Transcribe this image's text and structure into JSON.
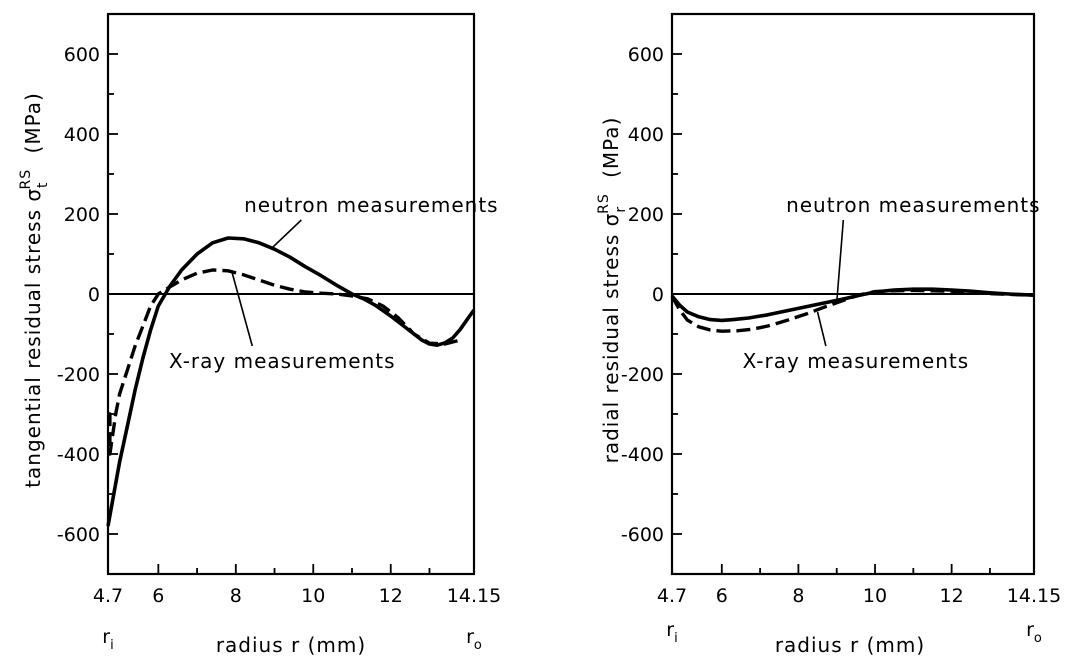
{
  "chart_data": [
    {
      "type": "line",
      "ylabel": "tangential residual stress σ_t^RS (MPa)",
      "ylabel_main": "tangential residual stress σ",
      "ylabel_sub": "t",
      "ylabel_sup": "RS",
      "ylabel_unit": "(MPa)",
      "xlabel": "radius r (mm)",
      "inner_label": "r",
      "inner_sub": "i",
      "outer_label": "r",
      "outer_sub": "o",
      "xlim": [
        4.7,
        14.15
      ],
      "ylim": [
        -700,
        700
      ],
      "xticks": [
        4.7,
        6,
        8,
        10,
        12,
        14.15
      ],
      "xtick_labels": [
        "4.7",
        "6",
        "8",
        "10",
        "12",
        "14.15"
      ],
      "yticks": [
        600,
        400,
        200,
        0,
        -200,
        -400,
        -600
      ],
      "ytick_labels": [
        "600",
        "400",
        "200",
        "0",
        "-200",
        "-400",
        "-600"
      ],
      "zero_line": true,
      "series": [
        {
          "name": "neutron measurements",
          "style": "solid",
          "x": [
            4.7,
            4.85,
            5.0,
            5.2,
            5.4,
            5.6,
            5.8,
            6.0,
            6.3,
            6.6,
            7.0,
            7.4,
            7.8,
            8.2,
            8.6,
            9.0,
            9.4,
            9.8,
            10.2,
            10.6,
            11.0,
            11.3,
            11.6,
            12.0,
            12.4,
            12.8,
            13.0,
            13.2,
            13.4,
            13.6,
            13.8,
            14.0,
            14.15
          ],
          "y": [
            -580,
            -500,
            -420,
            -330,
            -240,
            -160,
            -90,
            -30,
            20,
            60,
            100,
            128,
            140,
            138,
            128,
            112,
            92,
            68,
            46,
            22,
            0,
            -12,
            -28,
            -55,
            -85,
            -115,
            -125,
            -128,
            -122,
            -110,
            -88,
            -60,
            -40
          ]
        },
        {
          "name": "X-ray measurements",
          "style": "dashed",
          "x": [
            4.7,
            4.75,
            4.75,
            4.9,
            5.0,
            5.2,
            5.4,
            5.6,
            5.8,
            6.0,
            6.3,
            6.6,
            7.0,
            7.4,
            7.8,
            8.2,
            8.6,
            9.0,
            9.4,
            9.8,
            10.2,
            10.6,
            11.0,
            11.4,
            11.8,
            12.2,
            12.6,
            13.0,
            13.4,
            13.8
          ],
          "y": [
            -300,
            -300,
            -400,
            -300,
            -250,
            -190,
            -130,
            -80,
            -30,
            0,
            18,
            35,
            52,
            60,
            58,
            48,
            35,
            22,
            12,
            5,
            2,
            0,
            -5,
            -12,
            -30,
            -60,
            -100,
            -123,
            -125,
            -115
          ]
        }
      ],
      "annotations": [
        {
          "text": "neutron measurements",
          "series": "neutron measurements",
          "x": 11.5,
          "y": 205,
          "points_to_x": 8.9,
          "points_to_y": 112
        },
        {
          "text": "X-ray measurements",
          "series": "X-ray measurements",
          "x": 9.2,
          "y": -185,
          "points_to_x": 7.9,
          "points_to_y": 55
        }
      ]
    },
    {
      "type": "line",
      "ylabel": "radial residual stress σ_r^RS (MPa)",
      "ylabel_main": "radial residual stress σ",
      "ylabel_sub": "r",
      "ylabel_sup": "RS",
      "ylabel_unit": "(MPa)",
      "xlabel": "radius r (mm)",
      "inner_label": "r",
      "inner_sub": "i",
      "outer_label": "r",
      "outer_sub": "o",
      "xlim": [
        4.7,
        14.15
      ],
      "ylim": [
        -700,
        700
      ],
      "xticks": [
        4.7,
        6,
        8,
        10,
        12,
        14.15
      ],
      "xtick_labels": [
        "4.7",
        "6",
        "8",
        "10",
        "12",
        "14.15"
      ],
      "yticks": [
        600,
        400,
        200,
        0,
        -200,
        -400,
        -600
      ],
      "ytick_labels": [
        "600",
        "400",
        "200",
        "0",
        "-200",
        "-400",
        "-600"
      ],
      "zero_line": true,
      "series": [
        {
          "name": "neutron measurements",
          "style": "solid",
          "x": [
            4.7,
            4.9,
            5.1,
            5.4,
            5.7,
            6.0,
            6.3,
            6.7,
            7.2,
            7.7,
            8.2,
            8.7,
            9.2,
            9.6,
            10.0,
            10.5,
            11.0,
            11.5,
            12.0,
            12.5,
            13.0,
            13.5,
            14.15
          ],
          "y": [
            -5,
            -28,
            -45,
            -57,
            -64,
            -66,
            -64,
            -60,
            -52,
            -42,
            -32,
            -22,
            -12,
            -3,
            5,
            10,
            12,
            12,
            10,
            7,
            3,
            0,
            -3
          ]
        },
        {
          "name": "X-ray measurements",
          "style": "dashed",
          "x": [
            4.7,
            4.9,
            5.1,
            5.4,
            5.7,
            6.0,
            6.4,
            6.8,
            7.2,
            7.7,
            8.2,
            8.7,
            9.2,
            9.6,
            10.0,
            10.5,
            11.0,
            11.5,
            12.0,
            12.5,
            13.0,
            13.5,
            14.15
          ],
          "y": [
            -5,
            -40,
            -65,
            -82,
            -90,
            -93,
            -92,
            -88,
            -80,
            -66,
            -50,
            -32,
            -15,
            -2,
            6,
            8,
            9,
            8,
            7,
            4,
            1,
            -1,
            -3
          ]
        }
      ],
      "annotations": [
        {
          "text": "neutron measurements",
          "series": "neutron measurements",
          "x": 11.0,
          "y": 205,
          "points_to_x": 9.0,
          "points_to_y": -22
        },
        {
          "text": "X-ray measurements",
          "series": "X-ray measurements",
          "x": 9.5,
          "y": -185,
          "points_to_x": 8.5,
          "points_to_y": -45
        }
      ]
    }
  ]
}
